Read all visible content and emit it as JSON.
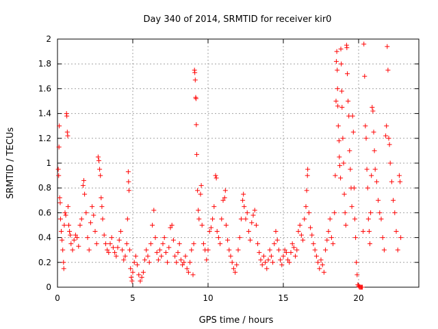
{
  "chart_data": {
    "type": "scatter",
    "title": "Day 340 of 2014, SRMTID for receiver kir0",
    "xlabel": "GPS time / hours",
    "ylabel": "SRMTID / TECUs",
    "xlim": [
      0,
      24
    ],
    "ylim": [
      0,
      2
    ],
    "xticks": [
      0,
      5,
      10,
      15,
      20
    ],
    "xtick_labels": [
      "0",
      "5",
      "10",
      "15",
      "20"
    ],
    "yticks": [
      0,
      0.2,
      0.4,
      0.6,
      0.8,
      1,
      1.2,
      1.4,
      1.6,
      1.8,
      2
    ],
    "ytick_labels": [
      "0",
      "0.2",
      "0.4",
      "0.6",
      "0.8",
      "1",
      "1.2",
      "1.4",
      "1.6",
      "1.8",
      "2"
    ],
    "grid": true,
    "marker": "+",
    "color": "#ff0000",
    "series": [
      {
        "name": "SRMTID",
        "points": [
          [
            0.05,
            0.95
          ],
          [
            0.08,
            0.9
          ],
          [
            0.1,
            1.13
          ],
          [
            0.12,
            1.3
          ],
          [
            0.15,
            0.72
          ],
          [
            0.18,
            0.68
          ],
          [
            0.2,
            0.55
          ],
          [
            0.25,
            0.45
          ],
          [
            0.3,
            0.38
          ],
          [
            0.35,
            0.3
          ],
          [
            0.4,
            0.2
          ],
          [
            0.42,
            0.15
          ],
          [
            0.45,
            0.5
          ],
          [
            0.5,
            0.6
          ],
          [
            0.55,
            0.58
          ],
          [
            0.6,
            1.4
          ],
          [
            0.62,
            1.38
          ],
          [
            0.65,
            1.25
          ],
          [
            0.68,
            1.22
          ],
          [
            0.7,
            0.65
          ],
          [
            0.75,
            0.5
          ],
          [
            0.8,
            0.45
          ],
          [
            0.85,
            0.42
          ],
          [
            0.9,
            0.35
          ],
          [
            1.0,
            0.3
          ],
          [
            1.1,
            0.38
          ],
          [
            1.2,
            0.42
          ],
          [
            1.3,
            0.4
          ],
          [
            1.4,
            0.33
          ],
          [
            1.5,
            0.5
          ],
          [
            1.6,
            0.55
          ],
          [
            1.7,
            0.82
          ],
          [
            1.75,
            0.86
          ],
          [
            1.8,
            0.75
          ],
          [
            1.9,
            0.6
          ],
          [
            2.0,
            0.4
          ],
          [
            2.1,
            0.3
          ],
          [
            2.2,
            0.52
          ],
          [
            2.3,
            0.65
          ],
          [
            2.4,
            0.58
          ],
          [
            2.5,
            0.45
          ],
          [
            2.6,
            0.35
          ],
          [
            2.7,
            1.05
          ],
          [
            2.75,
            1.02
          ],
          [
            2.8,
            0.95
          ],
          [
            2.85,
            0.9
          ],
          [
            2.9,
            0.72
          ],
          [
            2.95,
            0.65
          ],
          [
            3.0,
            0.55
          ],
          [
            3.1,
            0.42
          ],
          [
            3.2,
            0.35
          ],
          [
            3.3,
            0.3
          ],
          [
            3.4,
            0.28
          ],
          [
            3.5,
            0.35
          ],
          [
            3.6,
            0.4
          ],
          [
            3.7,
            0.32
          ],
          [
            3.8,
            0.28
          ],
          [
            3.9,
            0.25
          ],
          [
            4.0,
            0.32
          ],
          [
            4.1,
            0.38
          ],
          [
            4.2,
            0.45
          ],
          [
            4.3,
            0.3
          ],
          [
            4.4,
            0.22
          ],
          [
            4.5,
            0.25
          ],
          [
            4.6,
            0.35
          ],
          [
            4.65,
            0.55
          ],
          [
            4.7,
            0.93
          ],
          [
            4.72,
            0.85
          ],
          [
            4.75,
            0.78
          ],
          [
            4.8,
            0.3
          ],
          [
            4.85,
            0.15
          ],
          [
            4.9,
            0.08
          ],
          [
            4.95,
            0.05
          ],
          [
            5.0,
            0.12
          ],
          [
            5.1,
            0.2
          ],
          [
            5.2,
            0.25
          ],
          [
            5.3,
            0.18
          ],
          [
            5.4,
            0.1
          ],
          [
            5.5,
            0.05
          ],
          [
            5.6,
            0.08
          ],
          [
            5.7,
            0.12
          ],
          [
            5.8,
            0.22
          ],
          [
            5.9,
            0.3
          ],
          [
            6.0,
            0.25
          ],
          [
            6.1,
            0.2
          ],
          [
            6.2,
            0.35
          ],
          [
            6.3,
            0.5
          ],
          [
            6.4,
            0.62
          ],
          [
            6.5,
            0.4
          ],
          [
            6.6,
            0.28
          ],
          [
            6.7,
            0.22
          ],
          [
            6.8,
            0.3
          ],
          [
            6.9,
            0.25
          ],
          [
            7.0,
            0.35
          ],
          [
            7.1,
            0.4
          ],
          [
            7.2,
            0.28
          ],
          [
            7.3,
            0.2
          ],
          [
            7.4,
            0.32
          ],
          [
            7.5,
            0.48
          ],
          [
            7.6,
            0.5
          ],
          [
            7.7,
            0.38
          ],
          [
            7.8,
            0.25
          ],
          [
            7.9,
            0.2
          ],
          [
            8.0,
            0.28
          ],
          [
            8.1,
            0.35
          ],
          [
            8.2,
            0.22
          ],
          [
            8.3,
            0.18
          ],
          [
            8.4,
            0.2
          ],
          [
            8.5,
            0.25
          ],
          [
            8.6,
            0.15
          ],
          [
            8.7,
            0.12
          ],
          [
            8.8,
            0.2
          ],
          [
            8.9,
            0.3
          ],
          [
            9.0,
            0.1
          ],
          [
            9.05,
            0.35
          ],
          [
            9.1,
            1.75
          ],
          [
            9.12,
            1.73
          ],
          [
            9.15,
            1.67
          ],
          [
            9.18,
            1.53
          ],
          [
            9.2,
            1.52
          ],
          [
            9.22,
            1.31
          ],
          [
            9.25,
            1.07
          ],
          [
            9.3,
            0.78
          ],
          [
            9.35,
            0.62
          ],
          [
            9.4,
            0.55
          ],
          [
            9.5,
            0.75
          ],
          [
            9.55,
            0.82
          ],
          [
            9.6,
            0.5
          ],
          [
            9.7,
            0.35
          ],
          [
            9.8,
            0.3
          ],
          [
            9.9,
            0.22
          ],
          [
            10.0,
            0.3
          ],
          [
            10.1,
            0.45
          ],
          [
            10.2,
            0.48
          ],
          [
            10.3,
            0.55
          ],
          [
            10.4,
            0.65
          ],
          [
            10.5,
            0.9
          ],
          [
            10.55,
            0.88
          ],
          [
            10.6,
            0.45
          ],
          [
            10.7,
            0.4
          ],
          [
            10.8,
            0.35
          ],
          [
            10.9,
            0.55
          ],
          [
            11.0,
            0.7
          ],
          [
            11.1,
            0.72
          ],
          [
            11.15,
            0.78
          ],
          [
            11.2,
            0.5
          ],
          [
            11.3,
            0.38
          ],
          [
            11.4,
            0.3
          ],
          [
            11.5,
            0.25
          ],
          [
            11.6,
            0.2
          ],
          [
            11.7,
            0.15
          ],
          [
            11.8,
            0.12
          ],
          [
            11.9,
            0.18
          ],
          [
            12.0,
            0.3
          ],
          [
            12.1,
            0.4
          ],
          [
            12.2,
            0.55
          ],
          [
            12.3,
            0.7
          ],
          [
            12.35,
            0.75
          ],
          [
            12.4,
            0.65
          ],
          [
            12.5,
            0.55
          ],
          [
            12.6,
            0.6
          ],
          [
            12.7,
            0.45
          ],
          [
            12.8,
            0.38
          ],
          [
            12.9,
            0.52
          ],
          [
            13.0,
            0.58
          ],
          [
            13.1,
            0.62
          ],
          [
            13.2,
            0.5
          ],
          [
            13.3,
            0.35
          ],
          [
            13.4,
            0.28
          ],
          [
            13.5,
            0.22
          ],
          [
            13.6,
            0.18
          ],
          [
            13.7,
            0.25
          ],
          [
            13.8,
            0.2
          ],
          [
            13.9,
            0.15
          ],
          [
            14.0,
            0.22
          ],
          [
            14.1,
            0.3
          ],
          [
            14.2,
            0.25
          ],
          [
            14.3,
            0.2
          ],
          [
            14.4,
            0.35
          ],
          [
            14.5,
            0.45
          ],
          [
            14.6,
            0.38
          ],
          [
            14.7,
            0.3
          ],
          [
            14.8,
            0.22
          ],
          [
            14.9,
            0.18
          ],
          [
            15.0,
            0.25
          ],
          [
            15.1,
            0.3
          ],
          [
            15.2,
            0.28
          ],
          [
            15.3,
            0.22
          ],
          [
            15.4,
            0.2
          ],
          [
            15.5,
            0.28
          ],
          [
            15.6,
            0.35
          ],
          [
            15.7,
            0.32
          ],
          [
            15.8,
            0.25
          ],
          [
            15.9,
            0.3
          ],
          [
            16.0,
            0.45
          ],
          [
            16.1,
            0.5
          ],
          [
            16.2,
            0.42
          ],
          [
            16.3,
            0.38
          ],
          [
            16.4,
            0.55
          ],
          [
            16.5,
            0.65
          ],
          [
            16.55,
            0.78
          ],
          [
            16.6,
            0.9
          ],
          [
            16.62,
            0.95
          ],
          [
            16.7,
            0.6
          ],
          [
            16.8,
            0.48
          ],
          [
            16.9,
            0.42
          ],
          [
            17.0,
            0.35
          ],
          [
            17.1,
            0.3
          ],
          [
            17.2,
            0.25
          ],
          [
            17.3,
            0.2
          ],
          [
            17.4,
            0.15
          ],
          [
            17.5,
            0.22
          ],
          [
            17.6,
            0.18
          ],
          [
            17.7,
            0.12
          ],
          [
            17.8,
            0.3
          ],
          [
            17.9,
            0.38
          ],
          [
            18.0,
            0.45
          ],
          [
            18.1,
            0.55
          ],
          [
            18.2,
            0.4
          ],
          [
            18.3,
            0.35
          ],
          [
            18.4,
            0.6
          ],
          [
            18.45,
            0.9
          ],
          [
            18.5,
            1.5
          ],
          [
            18.52,
            1.82
          ],
          [
            18.55,
            1.9
          ],
          [
            18.58,
            1.75
          ],
          [
            18.6,
            1.6
          ],
          [
            18.62,
            1.46
          ],
          [
            18.65,
            1.3
          ],
          [
            18.7,
            1.18
          ],
          [
            18.72,
            1.05
          ],
          [
            18.75,
            0.98
          ],
          [
            18.8,
            0.88
          ],
          [
            18.82,
            1.92
          ],
          [
            18.85,
            1.8
          ],
          [
            18.88,
            1.58
          ],
          [
            18.9,
            1.45
          ],
          [
            18.95,
            1.2
          ],
          [
            19.0,
            1.0
          ],
          [
            19.05,
            0.75
          ],
          [
            19.1,
            0.6
          ],
          [
            19.15,
            0.5
          ],
          [
            19.2,
            1.95
          ],
          [
            19.22,
            1.93
          ],
          [
            19.25,
            1.72
          ],
          [
            19.3,
            1.5
          ],
          [
            19.35,
            1.38
          ],
          [
            19.4,
            1.1
          ],
          [
            19.45,
            0.95
          ],
          [
            19.5,
            0.8
          ],
          [
            19.55,
            0.65
          ],
          [
            19.6,
            1.38
          ],
          [
            19.65,
            1.25
          ],
          [
            19.7,
            0.8
          ],
          [
            19.75,
            0.55
          ],
          [
            19.8,
            0.4
          ],
          [
            19.85,
            0.2
          ],
          [
            19.9,
            0.1
          ],
          [
            19.95,
            0.02
          ],
          [
            20.0,
            0.01
          ],
          [
            20.05,
            0.0
          ],
          [
            20.1,
            0.0
          ],
          [
            20.15,
            0.0
          ],
          [
            20.2,
            0.0
          ],
          [
            20.25,
            0.0
          ],
          [
            20.3,
            0.45
          ],
          [
            20.35,
            1.96
          ],
          [
            20.4,
            1.7
          ],
          [
            20.45,
            1.3
          ],
          [
            20.5,
            1.2
          ],
          [
            20.55,
            0.95
          ],
          [
            20.6,
            0.8
          ],
          [
            20.65,
            0.55
          ],
          [
            20.7,
            0.45
          ],
          [
            20.75,
            0.35
          ],
          [
            20.8,
            0.6
          ],
          [
            20.85,
            0.9
          ],
          [
            20.9,
            1.45
          ],
          [
            20.95,
            1.42
          ],
          [
            21.0,
            1.25
          ],
          [
            21.05,
            1.1
          ],
          [
            21.1,
            0.95
          ],
          [
            21.2,
            0.85
          ],
          [
            21.3,
            0.7
          ],
          [
            21.4,
            0.6
          ],
          [
            21.5,
            0.55
          ],
          [
            21.6,
            0.4
          ],
          [
            21.7,
            0.3
          ],
          [
            21.8,
            1.22
          ],
          [
            21.85,
            1.3
          ],
          [
            21.9,
            1.94
          ],
          [
            21.95,
            1.75
          ],
          [
            22.0,
            1.2
          ],
          [
            22.05,
            1.15
          ],
          [
            22.1,
            1.0
          ],
          [
            22.2,
            0.85
          ],
          [
            22.3,
            0.7
          ],
          [
            22.4,
            0.6
          ],
          [
            22.5,
            0.45
          ],
          [
            22.6,
            0.3
          ],
          [
            22.7,
            0.9
          ],
          [
            22.75,
            0.85
          ],
          [
            22.8,
            0.4
          ]
        ]
      }
    ]
  }
}
